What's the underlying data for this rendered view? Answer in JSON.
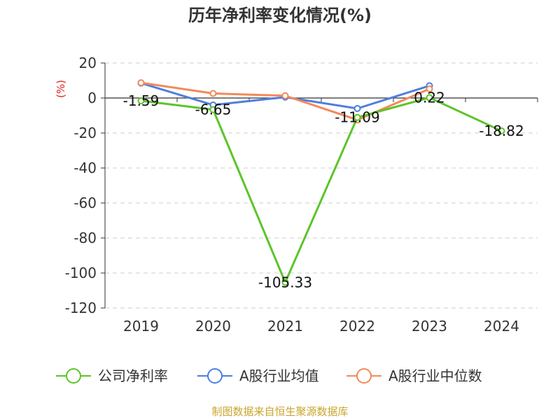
{
  "chart_data": {
    "type": "line",
    "title": "历年净利率变化情况(%)",
    "ylabel": "(%)",
    "xlabel": "",
    "categories": [
      "2019",
      "2020",
      "2021",
      "2022",
      "2023",
      "2024"
    ],
    "ylim": [
      -120,
      20
    ],
    "yticks": [
      20,
      0,
      -20,
      -40,
      -60,
      -80,
      -100,
      -120
    ],
    "ytick_labels": [
      "20",
      "0",
      "-20",
      "-40",
      "-60",
      "-80",
      "-100",
      "-120"
    ],
    "grid": true,
    "legend_position": "bottom",
    "series": [
      {
        "name": "公司净利率",
        "color": "#5cc42a",
        "values": [
          -1.59,
          -6.65,
          -105.33,
          -11.09,
          0.22,
          -18.82
        ],
        "labels": [
          "-1.59",
          "-6.65",
          "-105.33",
          "-11.09",
          "0.22",
          "-18.82"
        ]
      },
      {
        "name": "A股行业均值",
        "color": "#4e7ee0",
        "values": [
          8.5,
          -4,
          0.5,
          -6,
          7,
          null
        ]
      },
      {
        "name": "A股行业中位数",
        "color": "#f2895a",
        "values": [
          8.7,
          2.6,
          1.3,
          -12.5,
          5.2,
          null
        ]
      }
    ]
  },
  "source": "制图数据来自恒生聚源数据库"
}
